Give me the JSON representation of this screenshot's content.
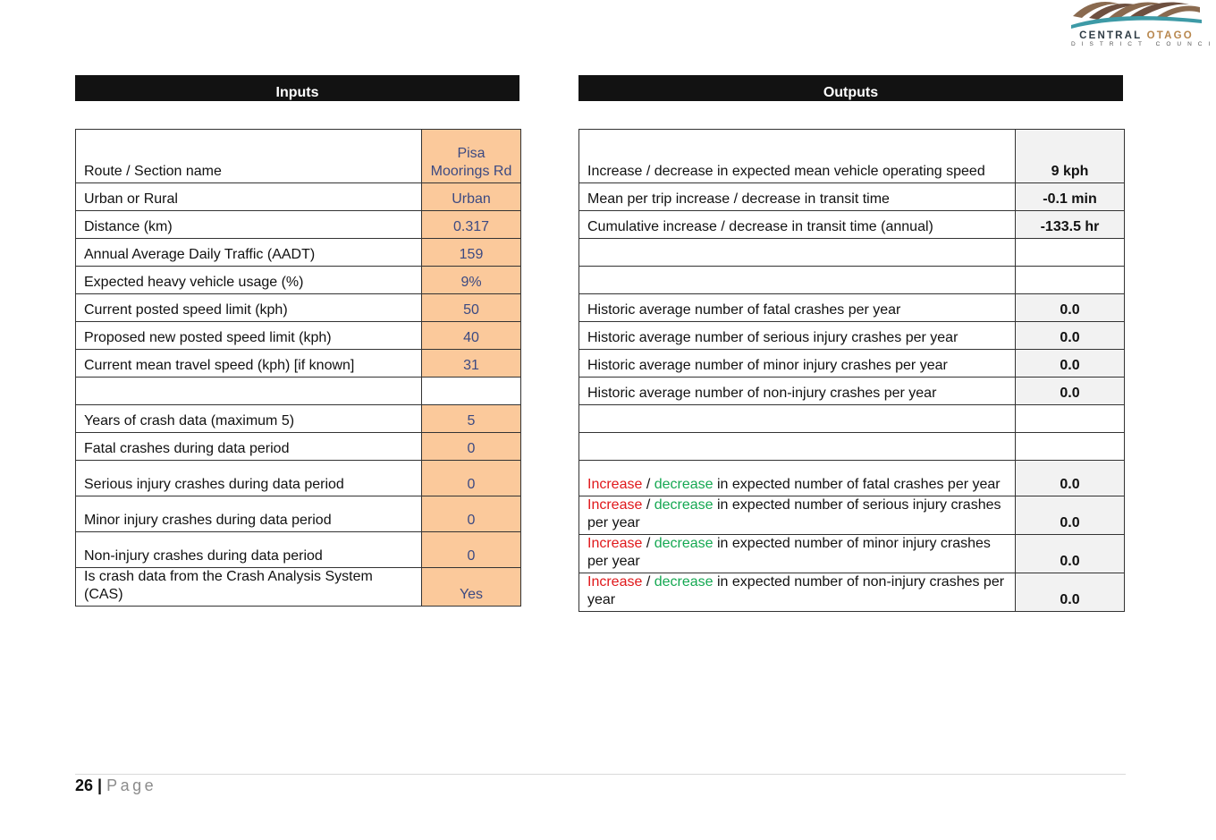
{
  "logo": {
    "name_part1": "CENTRAL",
    "name_part2": "OTAGO",
    "subtitle": "DISTRICT COUNCIL"
  },
  "inputs_title": "Inputs",
  "outputs_title": "Outputs",
  "inputs": [
    {
      "label": "Route / Section name",
      "value": "Pisa Moorings Rd"
    },
    {
      "label": "Urban or Rural",
      "value": "Urban"
    },
    {
      "label": "Distance (km)",
      "value": "0.317"
    },
    {
      "label": "Annual Average Daily Traffic (AADT)",
      "value": "159"
    },
    {
      "label": "Expected heavy vehicle usage (%)",
      "value": "9%"
    },
    {
      "label": "Current posted speed limit (kph)",
      "value": "50"
    },
    {
      "label": "Proposed new posted speed limit (kph)",
      "value": "40"
    },
    {
      "label": "Current mean travel speed (kph) [if known]",
      "value": "31"
    },
    {
      "label": "",
      "value": ""
    },
    {
      "label": "Years of crash data (maximum 5)",
      "value": "5"
    },
    {
      "label": "Fatal crashes during data period",
      "value": "0"
    },
    {
      "label": "Serious injury crashes during data period",
      "value": "0"
    },
    {
      "label": "Minor injury crashes during data period",
      "value": "0"
    },
    {
      "label": "Non-injury crashes during data period",
      "value": "0"
    },
    {
      "label": "Is crash data from the Crash Analysis System (CAS)",
      "value": "Yes"
    }
  ],
  "outputs": [
    {
      "label": "Increase / decrease in expected mean vehicle operating speed",
      "value": "9 kph"
    },
    {
      "label": "Mean per trip increase / decrease in transit time",
      "value": "-0.1 min"
    },
    {
      "label": "Cumulative increase / decrease in transit time (annual)",
      "value": "-133.5 hr"
    },
    {
      "label": "",
      "value": ""
    },
    {
      "label": "",
      "value": ""
    },
    {
      "label": "Historic average number of fatal crashes per year",
      "value": "0.0"
    },
    {
      "label": "Historic average number of serious injury crashes per year",
      "value": "0.0"
    },
    {
      "label": "Historic average number of minor injury crashes per year",
      "value": "0.0"
    },
    {
      "label": "Historic average number of non-injury crashes per year",
      "value": "0.0"
    },
    {
      "label": "",
      "value": ""
    },
    {
      "label": "",
      "value": ""
    },
    {
      "label_increase": "Increase",
      "label_sep": " / ",
      "label_decrease": "decrease",
      "label_rest": " in expected number of fatal crashes per year",
      "value": "0.0"
    },
    {
      "label_increase": "Increase",
      "label_sep": " / ",
      "label_decrease": "decrease",
      "label_rest": " in expected number of serious injury crashes per year",
      "value": "0.0"
    },
    {
      "label_increase": "Increase",
      "label_sep": " / ",
      "label_decrease": "decrease",
      "label_rest": " in expected number of minor injury crashes per year",
      "value": "0.0"
    },
    {
      "label_increase": "Increase",
      "label_sep": " / ",
      "label_decrease": "decrease",
      "label_rest": " in expected number of non-injury crashes per year",
      "value": "0.0"
    }
  ],
  "footer": {
    "page_number": "26",
    "separator": " | ",
    "page_word": "Page"
  }
}
